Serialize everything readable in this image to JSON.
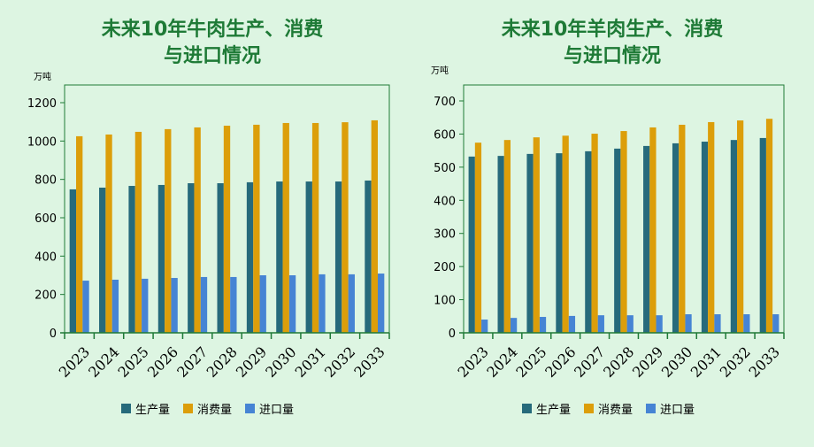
{
  "chart_data": [
    {
      "type": "bar",
      "title": [
        "未来10年牛肉生产、消费",
        "与进口情况"
      ],
      "unit_label": "万吨",
      "categories": [
        "2023",
        "2024",
        "2025",
        "2026",
        "2027",
        "2028",
        "2029",
        "2030",
        "2031",
        "2032",
        "2033"
      ],
      "ylim": [
        0,
        1200
      ],
      "yticks": [
        0,
        200,
        400,
        600,
        800,
        1000,
        1200
      ],
      "grid": false,
      "legend_position": "bottom",
      "series": [
        {
          "name": "生产量",
          "color": "#266a7b",
          "values": [
            748,
            757,
            766,
            771,
            780,
            780,
            785,
            789,
            789,
            789,
            794
          ]
        },
        {
          "name": "消费量",
          "color": "#dc9e0a",
          "values": [
            1025,
            1034,
            1048,
            1062,
            1071,
            1080,
            1085,
            1094,
            1094,
            1098,
            1108
          ]
        },
        {
          "name": "进口量",
          "color": "#4684d4",
          "values": [
            272,
            277,
            282,
            286,
            291,
            291,
            300,
            300,
            305,
            305,
            309
          ]
        }
      ]
    },
    {
      "type": "bar",
      "title": [
        "未来10年羊肉生产、消费",
        "与进口情况"
      ],
      "unit_label": "万吨",
      "categories": [
        "2023",
        "2024",
        "2025",
        "2026",
        "2027",
        "2028",
        "2029",
        "2030",
        "2031",
        "2032",
        "2033"
      ],
      "ylim": [
        0,
        700
      ],
      "yticks": [
        0,
        100,
        200,
        300,
        400,
        500,
        600,
        700
      ],
      "grid": false,
      "legend_position": "bottom",
      "series": [
        {
          "name": "生产量",
          "color": "#266a7b",
          "values": [
            532,
            534,
            540,
            542,
            548,
            556,
            564,
            572,
            577,
            582,
            588
          ]
        },
        {
          "name": "消费量",
          "color": "#dc9e0a",
          "values": [
            574,
            582,
            590,
            595,
            601,
            609,
            620,
            628,
            636,
            641,
            646
          ]
        },
        {
          "name": "进口量",
          "color": "#4684d4",
          "values": [
            40,
            45,
            48,
            51,
            53,
            53,
            53,
            56,
            56,
            56,
            56
          ]
        }
      ]
    }
  ],
  "axis_color": "#1e7a36"
}
